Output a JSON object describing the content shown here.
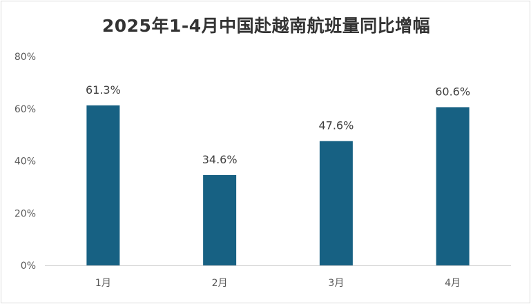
{
  "chart_data": {
    "type": "bar",
    "title": "2025年1-4月中国赴越南航班量同比增幅",
    "xlabel": "",
    "ylabel": "",
    "categories": [
      "1月",
      "2月",
      "3月",
      "4月"
    ],
    "values": [
      61.3,
      34.6,
      47.6,
      60.6
    ],
    "data_labels": [
      "61.3%",
      "34.6%",
      "47.6%",
      "60.6%"
    ],
    "ylim": [
      0,
      80
    ],
    "yticks": [
      0,
      20,
      40,
      60,
      80
    ],
    "ytick_labels": [
      "0%",
      "20%",
      "40%",
      "60%",
      "80%"
    ],
    "grid": false,
    "legend": "none",
    "bar_color": "#176183"
  }
}
